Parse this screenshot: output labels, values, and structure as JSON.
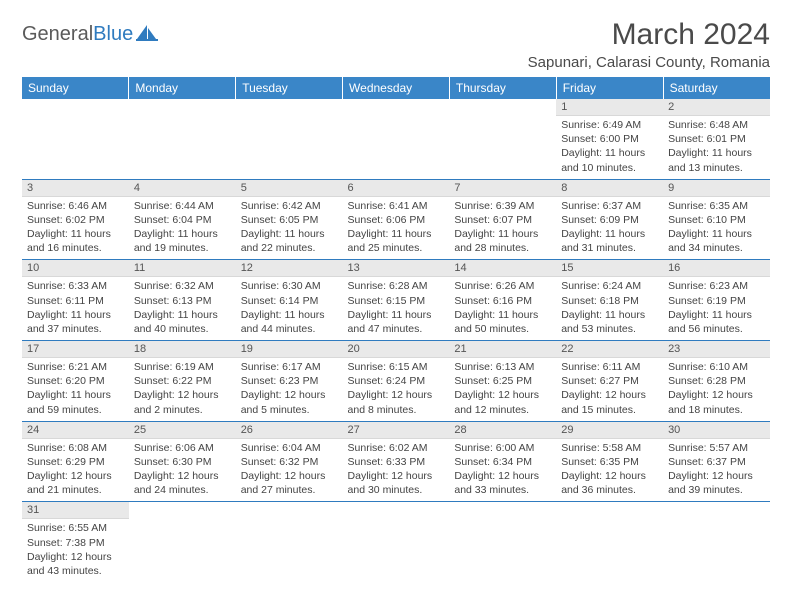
{
  "logo": {
    "word1": "General",
    "word2": "Blue"
  },
  "title": "March 2024",
  "location": "Sapunari, Calarasi County, Romania",
  "colors": {
    "header_bg": "#3a86c8",
    "header_text": "#ffffff",
    "body_bg": "#ffffff",
    "daynum_bg": "#e9e9e9",
    "cell_border": "#2f7bbf",
    "text": "#444444",
    "logo_gray": "#5a5a5a",
    "logo_blue": "#2f7bbf"
  },
  "typography": {
    "title_fontsize": 30,
    "location_fontsize": 15,
    "dayheader_fontsize": 12,
    "daynum_fontsize": 11,
    "body_fontsize": 10.5
  },
  "dayHeaders": [
    "Sunday",
    "Monday",
    "Tuesday",
    "Wednesday",
    "Thursday",
    "Friday",
    "Saturday"
  ],
  "weeks": [
    [
      null,
      null,
      null,
      null,
      null,
      {
        "n": "1",
        "sr": "Sunrise: 6:49 AM",
        "ss": "Sunset: 6:00 PM",
        "dl": "Daylight: 11 hours and 10 minutes."
      },
      {
        "n": "2",
        "sr": "Sunrise: 6:48 AM",
        "ss": "Sunset: 6:01 PM",
        "dl": "Daylight: 11 hours and 13 minutes."
      }
    ],
    [
      {
        "n": "3",
        "sr": "Sunrise: 6:46 AM",
        "ss": "Sunset: 6:02 PM",
        "dl": "Daylight: 11 hours and 16 minutes."
      },
      {
        "n": "4",
        "sr": "Sunrise: 6:44 AM",
        "ss": "Sunset: 6:04 PM",
        "dl": "Daylight: 11 hours and 19 minutes."
      },
      {
        "n": "5",
        "sr": "Sunrise: 6:42 AM",
        "ss": "Sunset: 6:05 PM",
        "dl": "Daylight: 11 hours and 22 minutes."
      },
      {
        "n": "6",
        "sr": "Sunrise: 6:41 AM",
        "ss": "Sunset: 6:06 PM",
        "dl": "Daylight: 11 hours and 25 minutes."
      },
      {
        "n": "7",
        "sr": "Sunrise: 6:39 AM",
        "ss": "Sunset: 6:07 PM",
        "dl": "Daylight: 11 hours and 28 minutes."
      },
      {
        "n": "8",
        "sr": "Sunrise: 6:37 AM",
        "ss": "Sunset: 6:09 PM",
        "dl": "Daylight: 11 hours and 31 minutes."
      },
      {
        "n": "9",
        "sr": "Sunrise: 6:35 AM",
        "ss": "Sunset: 6:10 PM",
        "dl": "Daylight: 11 hours and 34 minutes."
      }
    ],
    [
      {
        "n": "10",
        "sr": "Sunrise: 6:33 AM",
        "ss": "Sunset: 6:11 PM",
        "dl": "Daylight: 11 hours and 37 minutes."
      },
      {
        "n": "11",
        "sr": "Sunrise: 6:32 AM",
        "ss": "Sunset: 6:13 PM",
        "dl": "Daylight: 11 hours and 40 minutes."
      },
      {
        "n": "12",
        "sr": "Sunrise: 6:30 AM",
        "ss": "Sunset: 6:14 PM",
        "dl": "Daylight: 11 hours and 44 minutes."
      },
      {
        "n": "13",
        "sr": "Sunrise: 6:28 AM",
        "ss": "Sunset: 6:15 PM",
        "dl": "Daylight: 11 hours and 47 minutes."
      },
      {
        "n": "14",
        "sr": "Sunrise: 6:26 AM",
        "ss": "Sunset: 6:16 PM",
        "dl": "Daylight: 11 hours and 50 minutes."
      },
      {
        "n": "15",
        "sr": "Sunrise: 6:24 AM",
        "ss": "Sunset: 6:18 PM",
        "dl": "Daylight: 11 hours and 53 minutes."
      },
      {
        "n": "16",
        "sr": "Sunrise: 6:23 AM",
        "ss": "Sunset: 6:19 PM",
        "dl": "Daylight: 11 hours and 56 minutes."
      }
    ],
    [
      {
        "n": "17",
        "sr": "Sunrise: 6:21 AM",
        "ss": "Sunset: 6:20 PM",
        "dl": "Daylight: 11 hours and 59 minutes."
      },
      {
        "n": "18",
        "sr": "Sunrise: 6:19 AM",
        "ss": "Sunset: 6:22 PM",
        "dl": "Daylight: 12 hours and 2 minutes."
      },
      {
        "n": "19",
        "sr": "Sunrise: 6:17 AM",
        "ss": "Sunset: 6:23 PM",
        "dl": "Daylight: 12 hours and 5 minutes."
      },
      {
        "n": "20",
        "sr": "Sunrise: 6:15 AM",
        "ss": "Sunset: 6:24 PM",
        "dl": "Daylight: 12 hours and 8 minutes."
      },
      {
        "n": "21",
        "sr": "Sunrise: 6:13 AM",
        "ss": "Sunset: 6:25 PM",
        "dl": "Daylight: 12 hours and 12 minutes."
      },
      {
        "n": "22",
        "sr": "Sunrise: 6:11 AM",
        "ss": "Sunset: 6:27 PM",
        "dl": "Daylight: 12 hours and 15 minutes."
      },
      {
        "n": "23",
        "sr": "Sunrise: 6:10 AM",
        "ss": "Sunset: 6:28 PM",
        "dl": "Daylight: 12 hours and 18 minutes."
      }
    ],
    [
      {
        "n": "24",
        "sr": "Sunrise: 6:08 AM",
        "ss": "Sunset: 6:29 PM",
        "dl": "Daylight: 12 hours and 21 minutes."
      },
      {
        "n": "25",
        "sr": "Sunrise: 6:06 AM",
        "ss": "Sunset: 6:30 PM",
        "dl": "Daylight: 12 hours and 24 minutes."
      },
      {
        "n": "26",
        "sr": "Sunrise: 6:04 AM",
        "ss": "Sunset: 6:32 PM",
        "dl": "Daylight: 12 hours and 27 minutes."
      },
      {
        "n": "27",
        "sr": "Sunrise: 6:02 AM",
        "ss": "Sunset: 6:33 PM",
        "dl": "Daylight: 12 hours and 30 minutes."
      },
      {
        "n": "28",
        "sr": "Sunrise: 6:00 AM",
        "ss": "Sunset: 6:34 PM",
        "dl": "Daylight: 12 hours and 33 minutes."
      },
      {
        "n": "29",
        "sr": "Sunrise: 5:58 AM",
        "ss": "Sunset: 6:35 PM",
        "dl": "Daylight: 12 hours and 36 minutes."
      },
      {
        "n": "30",
        "sr": "Sunrise: 5:57 AM",
        "ss": "Sunset: 6:37 PM",
        "dl": "Daylight: 12 hours and 39 minutes."
      }
    ],
    [
      {
        "n": "31",
        "sr": "Sunrise: 6:55 AM",
        "ss": "Sunset: 7:38 PM",
        "dl": "Daylight: 12 hours and 43 minutes."
      },
      null,
      null,
      null,
      null,
      null,
      null
    ]
  ]
}
